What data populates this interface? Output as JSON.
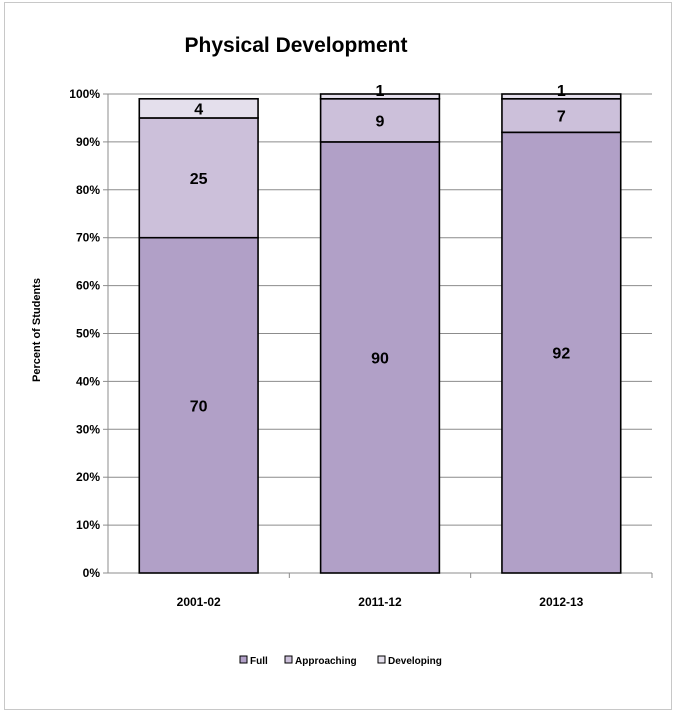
{
  "chart_data": {
    "type": "bar",
    "stacked": true,
    "percent_axis": true,
    "title": "Physical Development",
    "ylabel": "Percent of Students",
    "xlabel": "",
    "categories": [
      "2001-02",
      "2011-12",
      "2012-13"
    ],
    "series": [
      {
        "name": "Full",
        "values": [
          70,
          90,
          92
        ],
        "color": "#b1a0c7"
      },
      {
        "name": "Approaching",
        "values": [
          25,
          9,
          7
        ],
        "color": "#ccc0da"
      },
      {
        "name": "Developing",
        "values": [
          4,
          1,
          1
        ],
        "color": "#e4dfec"
      }
    ],
    "ylim": [
      0,
      100
    ],
    "yticks": [
      "0%",
      "10%",
      "20%",
      "30%",
      "40%",
      "50%",
      "60%",
      "70%",
      "80%",
      "90%",
      "100%"
    ],
    "grid": true,
    "legend": "bottom"
  }
}
